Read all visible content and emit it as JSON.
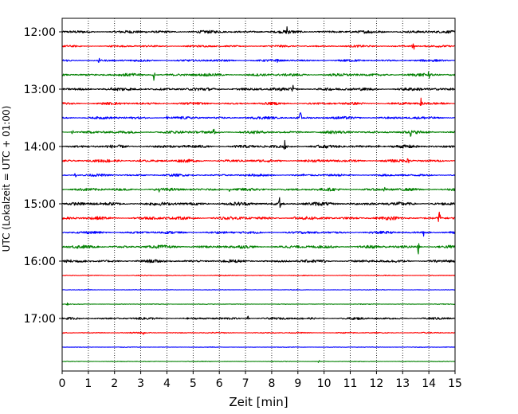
{
  "chart_data": {
    "type": "line",
    "title": "",
    "xlabel": "Zeit  [min]",
    "ylabel": "UTC (Lokalzeit = UTC + 01:00)",
    "xlim": [
      0,
      15
    ],
    "x_ticks": [
      "0",
      "1",
      "2",
      "3",
      "4",
      "5",
      "6",
      "7",
      "8",
      "9",
      "10",
      "11",
      "12",
      "13",
      "14",
      "15"
    ],
    "y_tick_labels": [
      "12:00",
      "13:00",
      "14:00",
      "15:00",
      "16:00",
      "17:00"
    ],
    "grid": "vertical-dotted",
    "colors": [
      "#000000",
      "#ff0000",
      "#0000ff",
      "#008000"
    ],
    "traces_per_hour": 4,
    "series": [
      {
        "start": "12:00",
        "color": "#000000",
        "spikes": [
          [
            8.6,
            9
          ]
        ],
        "noise": 0.5
      },
      {
        "start": "12:15",
        "color": "#ff0000",
        "spikes": [
          [
            13.4,
            10
          ]
        ],
        "noise": 0.35
      },
      {
        "start": "12:30",
        "color": "#0000ff",
        "spikes": [
          [
            1.4,
            3
          ],
          [
            8.2,
            3
          ]
        ],
        "noise": 0.4
      },
      {
        "start": "12:45",
        "color": "#008000",
        "spikes": [
          [
            3.5,
            9
          ],
          [
            14.0,
            5
          ]
        ],
        "noise": 0.5
      },
      {
        "start": "13:00",
        "color": "#000000",
        "spikes": [
          [
            1.9,
            4
          ],
          [
            8.8,
            10
          ]
        ],
        "noise": 0.55
      },
      {
        "start": "13:15",
        "color": "#ff0000",
        "spikes": [
          [
            13.7,
            7
          ]
        ],
        "noise": 0.45
      },
      {
        "start": "13:30",
        "color": "#0000ff",
        "spikes": [
          [
            9.1,
            8
          ],
          [
            4.0,
            3
          ]
        ],
        "noise": 0.45
      },
      {
        "start": "13:45",
        "color": "#008000",
        "spikes": [
          [
            0.4,
            4
          ],
          [
            5.8,
            6
          ],
          [
            13.3,
            5
          ]
        ],
        "noise": 0.5
      },
      {
        "start": "14:00",
        "color": "#000000",
        "spikes": [
          [
            8.5,
            8
          ],
          [
            12.1,
            3
          ]
        ],
        "noise": 0.55
      },
      {
        "start": "14:15",
        "color": "#ff0000",
        "spikes": [
          [
            13.2,
            8
          ],
          [
            3.0,
            2
          ]
        ],
        "noise": 0.5
      },
      {
        "start": "14:30",
        "color": "#0000ff",
        "spikes": [
          [
            0.5,
            3
          ],
          [
            9.2,
            4
          ]
        ],
        "noise": 0.4
      },
      {
        "start": "14:45",
        "color": "#008000",
        "spikes": [
          [
            3.7,
            7
          ],
          [
            6.4,
            3
          ],
          [
            12.3,
            4
          ]
        ],
        "noise": 0.5
      },
      {
        "start": "15:00",
        "color": "#000000",
        "spikes": [
          [
            8.3,
            9
          ]
        ],
        "noise": 0.6
      },
      {
        "start": "15:15",
        "color": "#ff0000",
        "spikes": [
          [
            14.4,
            10
          ],
          [
            4.4,
            3
          ],
          [
            8.9,
            3
          ]
        ],
        "noise": 0.55
      },
      {
        "start": "15:30",
        "color": "#0000ff",
        "spikes": [
          [
            13.8,
            6
          ]
        ],
        "noise": 0.45
      },
      {
        "start": "15:45",
        "color": "#008000",
        "spikes": [
          [
            13.6,
            10
          ]
        ],
        "noise": 0.55
      },
      {
        "start": "16:00",
        "color": "#000000",
        "spikes": [
          [
            10.0,
            3
          ]
        ],
        "noise": 0.5
      },
      {
        "start": "16:15",
        "color": "#ff0000",
        "spikes": [],
        "noise": 0.15
      },
      {
        "start": "16:30",
        "color": "#0000ff",
        "spikes": [],
        "noise": 0.1
      },
      {
        "start": "16:45",
        "color": "#008000",
        "spikes": [
          [
            0.2,
            3
          ]
        ],
        "noise": 0.12
      },
      {
        "start": "17:00",
        "color": "#000000",
        "spikes": [
          [
            7.1,
            6
          ]
        ],
        "noise": 0.4
      },
      {
        "start": "17:15",
        "color": "#ff0000",
        "spikes": [
          [
            3.1,
            2
          ]
        ],
        "noise": 0.2
      },
      {
        "start": "17:30",
        "color": "#0000ff",
        "spikes": [],
        "noise": 0.1
      },
      {
        "start": "17:45",
        "color": "#008000",
        "spikes": [
          [
            9.8,
            2
          ]
        ],
        "noise": 0.12
      }
    ]
  }
}
